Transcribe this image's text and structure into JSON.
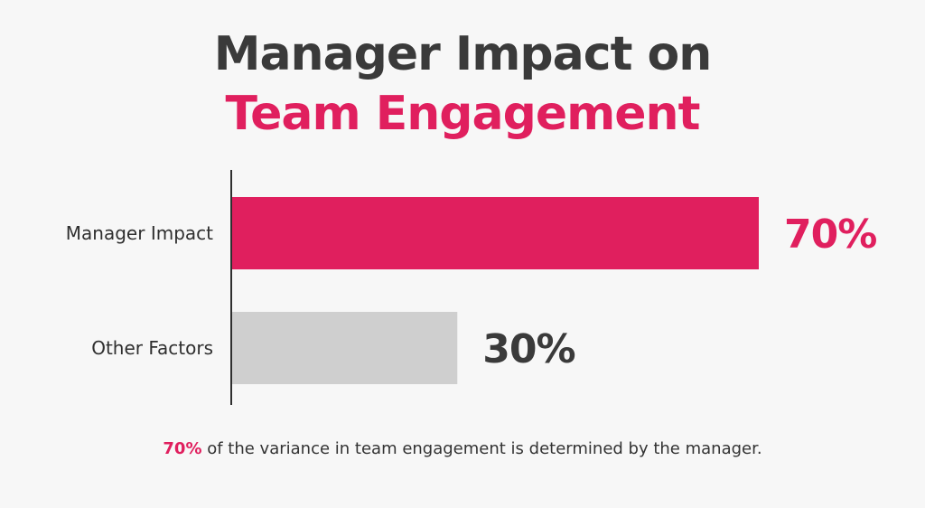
{
  "chart_data": {
    "type": "bar",
    "orientation": "horizontal",
    "title": "Manager Impact on",
    "title_highlight": "Team Engagement",
    "categories": [
      "Manager Impact",
      "Other Factors"
    ],
    "values": [
      70,
      30
    ],
    "value_labels": [
      "70%",
      "30%"
    ],
    "xlim": [
      0,
      70
    ],
    "colors": [
      "#e01f5e",
      "#cfcfcf"
    ],
    "value_label_colors": [
      "#e01f5e",
      "#3a3a3a"
    ],
    "xlabel": "",
    "ylabel": "",
    "grid": false,
    "legend": "none"
  },
  "footnote": {
    "highlight": "70%",
    "text": " of the variance in team engagement is determined by the manager."
  },
  "theme": {
    "accent": "#e01f5e",
    "text_dark": "#3a3a3a",
    "background": "#f7f7f7"
  }
}
